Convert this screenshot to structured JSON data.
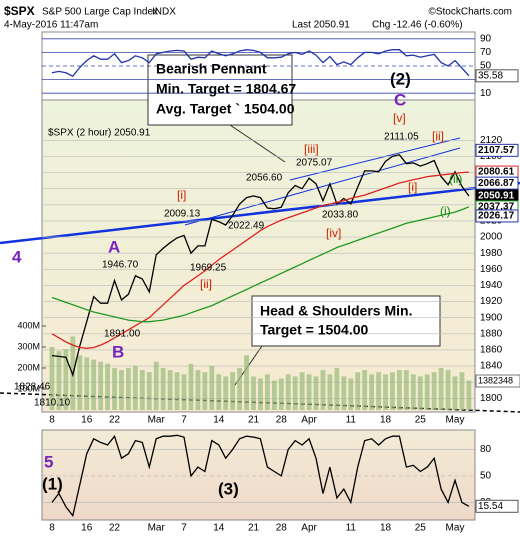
{
  "chart_data": [
    {
      "type": "line",
      "title": "$SPX",
      "subtitle": "S&P 500 Large Cap Index",
      "exchange": "INDX",
      "date": "4-May-2016 11:47am",
      "last": "Last 2050.91",
      "change": "Chg -12.46 (-0.60%)",
      "source": "©StockCharts.com",
      "series": [
        {
          "color": "#2233aa",
          "values": [
            40,
            42,
            40,
            35,
            48,
            58,
            65,
            60,
            60,
            68,
            55,
            58,
            65,
            62,
            55,
            68,
            70,
            72,
            73,
            72,
            60,
            63,
            62,
            72,
            68,
            65,
            68,
            72,
            74,
            73,
            70,
            62,
            62,
            63,
            68,
            70,
            67,
            72,
            66,
            55,
            64,
            52,
            56,
            52,
            62,
            70,
            70,
            68,
            72,
            74,
            74,
            65,
            66,
            63,
            65,
            67,
            55,
            50,
            58,
            47,
            35.58
          ]
        }
      ],
      "ylim": [
        0,
        100
      ],
      "yticks": [
        10,
        30,
        50,
        70,
        90
      ],
      "grid": true
    },
    {
      "type": "line",
      "categories": [
        "8",
        null,
        null,
        null,
        null,
        "16",
        null,
        null,
        null,
        "22",
        null,
        null,
        null,
        null,
        null,
        "Mar",
        null,
        null,
        null,
        "7",
        null,
        null,
        null,
        null,
        "14",
        null,
        null,
        null,
        null,
        "21",
        null,
        null,
        null,
        "28",
        null,
        null,
        null,
        "Apr",
        null,
        null,
        null,
        null,
        null,
        "11",
        null,
        null,
        null,
        null,
        "18",
        null,
        null,
        null,
        null,
        "25",
        null,
        null,
        null,
        null,
        "May",
        null,
        null
      ],
      "series": [
        {
          "name": "$SPX (2 hour) 2050.91",
          "color": "#000000",
          "values": [
            1853,
            1852,
            1851,
            1829,
            1865,
            1895,
            1926,
            1918,
            1918,
            1946,
            1922,
            1929,
            1952,
            1948,
            1932,
            1978,
            1986,
            1993,
            1999,
            2002,
            1980,
            1989,
            1989,
            2022,
            2019,
            2015,
            2027,
            2041,
            2049,
            2051,
            2049,
            2036,
            2035,
            2037,
            2055,
            2064,
            2060,
            2073,
            2066,
            2045,
            2066,
            2041,
            2048,
            2041,
            2062,
            2082,
            2082,
            2081,
            2094,
            2100,
            2102,
            2091,
            2092,
            2088,
            2091,
            2095,
            2075,
            2065,
            2081,
            2063,
            2050.91
          ]
        },
        {
          "color": "#dd2222",
          "values": [
            1880,
            1875,
            1870,
            1866,
            1863,
            1862,
            1863,
            1866,
            1870,
            1875,
            1880,
            1885,
            1890,
            1895,
            1900,
            1908,
            1916,
            1924,
            1932,
            1940,
            1946,
            1952,
            1958,
            1965,
            1972,
            1978,
            1984,
            1990,
            1996,
            2002,
            2008,
            2013,
            2017,
            2021,
            2024,
            2027,
            2030,
            2033,
            2036,
            2039,
            2041,
            2043,
            2045,
            2048,
            2050,
            2052,
            2055,
            2058,
            2061,
            2064,
            2067,
            2069,
            2071,
            2073,
            2075,
            2076,
            2077,
            2078,
            2079,
            2080,
            2080.61
          ]
        },
        {
          "color": "#229922",
          "values": [
            1925,
            1922,
            1919,
            1916,
            1913,
            1910,
            1907,
            1905,
            1903,
            1901,
            1899,
            1897,
            1896,
            1895,
            1895,
            1896,
            1897,
            1899,
            1901,
            1903,
            1906,
            1909,
            1912,
            1915,
            1919,
            1923,
            1927,
            1931,
            1935,
            1939,
            1943,
            1947,
            1951,
            1955,
            1959,
            1963,
            1967,
            1971,
            1975,
            1979,
            1983,
            1987,
            1990,
            1993,
            1996,
            1999,
            2002,
            2005,
            2008,
            2011,
            2014,
            2017,
            2019,
            2021,
            2023,
            2025,
            2027,
            2029,
            2031,
            2034,
            2037.37
          ]
        }
      ],
      "ylim": [
        1783,
        2170
      ],
      "yticks": [
        1800,
        1820,
        1840,
        1860,
        1880,
        1900,
        1920,
        1940,
        1960,
        1980,
        2000,
        2020,
        2040,
        2060,
        2080,
        2100,
        2120
      ],
      "grid": true,
      "price_labels": [
        2107.57,
        2080.61,
        2066.87,
        2050.91,
        2037.37,
        2026.17
      ],
      "price_label_colors": [
        "#2233aa",
        "#dd2222",
        "#2233aa",
        "#000000",
        "#229922",
        "#2233aa"
      ],
      "annotations": [
        "Bearish Pennant",
        "Min. Target = 1804.67",
        "Avg. Target ` 1504.00",
        "Head & Shoulders Min.",
        "Target = 1504.00",
        "(2)",
        "C",
        "[v]",
        "2111.05",
        "[iii]",
        "2075.07",
        "2056.60",
        "[i]",
        "2009.13",
        "2022.49",
        "[iv]",
        "2033.80",
        "1969.25",
        "[ii]",
        "1946.70",
        "A",
        "1891.00",
        "B",
        "1828.46",
        "1810.10",
        "4",
        "[ii]",
        "[i]",
        "(ii)",
        "(i)"
      ],
      "volume": {
        "color": "#99bb77",
        "ylim": [
          0,
          400
        ],
        "yticks": [
          {
            "value": 100,
            "label": "100M"
          },
          {
            "value": 200,
            "label": "200M"
          },
          {
            "value": 300,
            "label": "300M"
          },
          {
            "value": 400,
            "label": "400M"
          }
        ],
        "last": 1382348,
        "values": [
          300,
          280,
          290,
          350,
          260,
          250,
          240,
          230,
          220,
          200,
          190,
          200,
          210,
          190,
          180,
          230,
          200,
          190,
          180,
          170,
          220,
          190,
          180,
          210,
          170,
          160,
          180,
          200,
          260,
          160,
          150,
          170,
          140,
          150,
          170,
          160,
          180,
          170,
          160,
          190,
          170,
          200,
          160,
          150,
          180,
          190,
          170,
          180,
          170,
          180,
          190,
          190,
          170,
          160,
          170,
          180,
          200,
          190,
          160,
          180,
          140
        ]
      }
    },
    {
      "type": "line",
      "categories": [
        "8",
        null,
        null,
        null,
        null,
        "16",
        null,
        null,
        null,
        "22",
        null,
        null,
        null,
        null,
        null,
        "Mar",
        null,
        null,
        null,
        "7",
        null,
        null,
        null,
        null,
        "14",
        null,
        null,
        null,
        null,
        "21",
        null,
        null,
        null,
        "28",
        null,
        null,
        null,
        "Apr",
        null,
        null,
        null,
        null,
        null,
        "11",
        null,
        null,
        null,
        null,
        "18",
        null,
        null,
        null,
        null,
        "25",
        null,
        null,
        null,
        null,
        "May",
        null,
        null
      ],
      "series": [
        {
          "color": "#000000",
          "values": [
            20,
            30,
            15,
            5,
            40,
            75,
            92,
            88,
            85,
            95,
            70,
            75,
            90,
            88,
            60,
            92,
            95,
            95,
            96,
            94,
            50,
            60,
            55,
            90,
            85,
            70,
            80,
            92,
            95,
            94,
            92,
            60,
            55,
            50,
            80,
            90,
            85,
            92,
            70,
            30,
            60,
            25,
            35,
            20,
            60,
            90,
            92,
            85,
            92,
            95,
            95,
            60,
            62,
            55,
            60,
            70,
            35,
            20,
            45,
            20,
            15.54
          ]
        }
      ],
      "ylim": [
        0,
        102
      ],
      "yticks": [
        20,
        50,
        80
      ],
      "grid": true,
      "annotations": [
        "5",
        "(1)",
        "(3)"
      ]
    }
  ]
}
